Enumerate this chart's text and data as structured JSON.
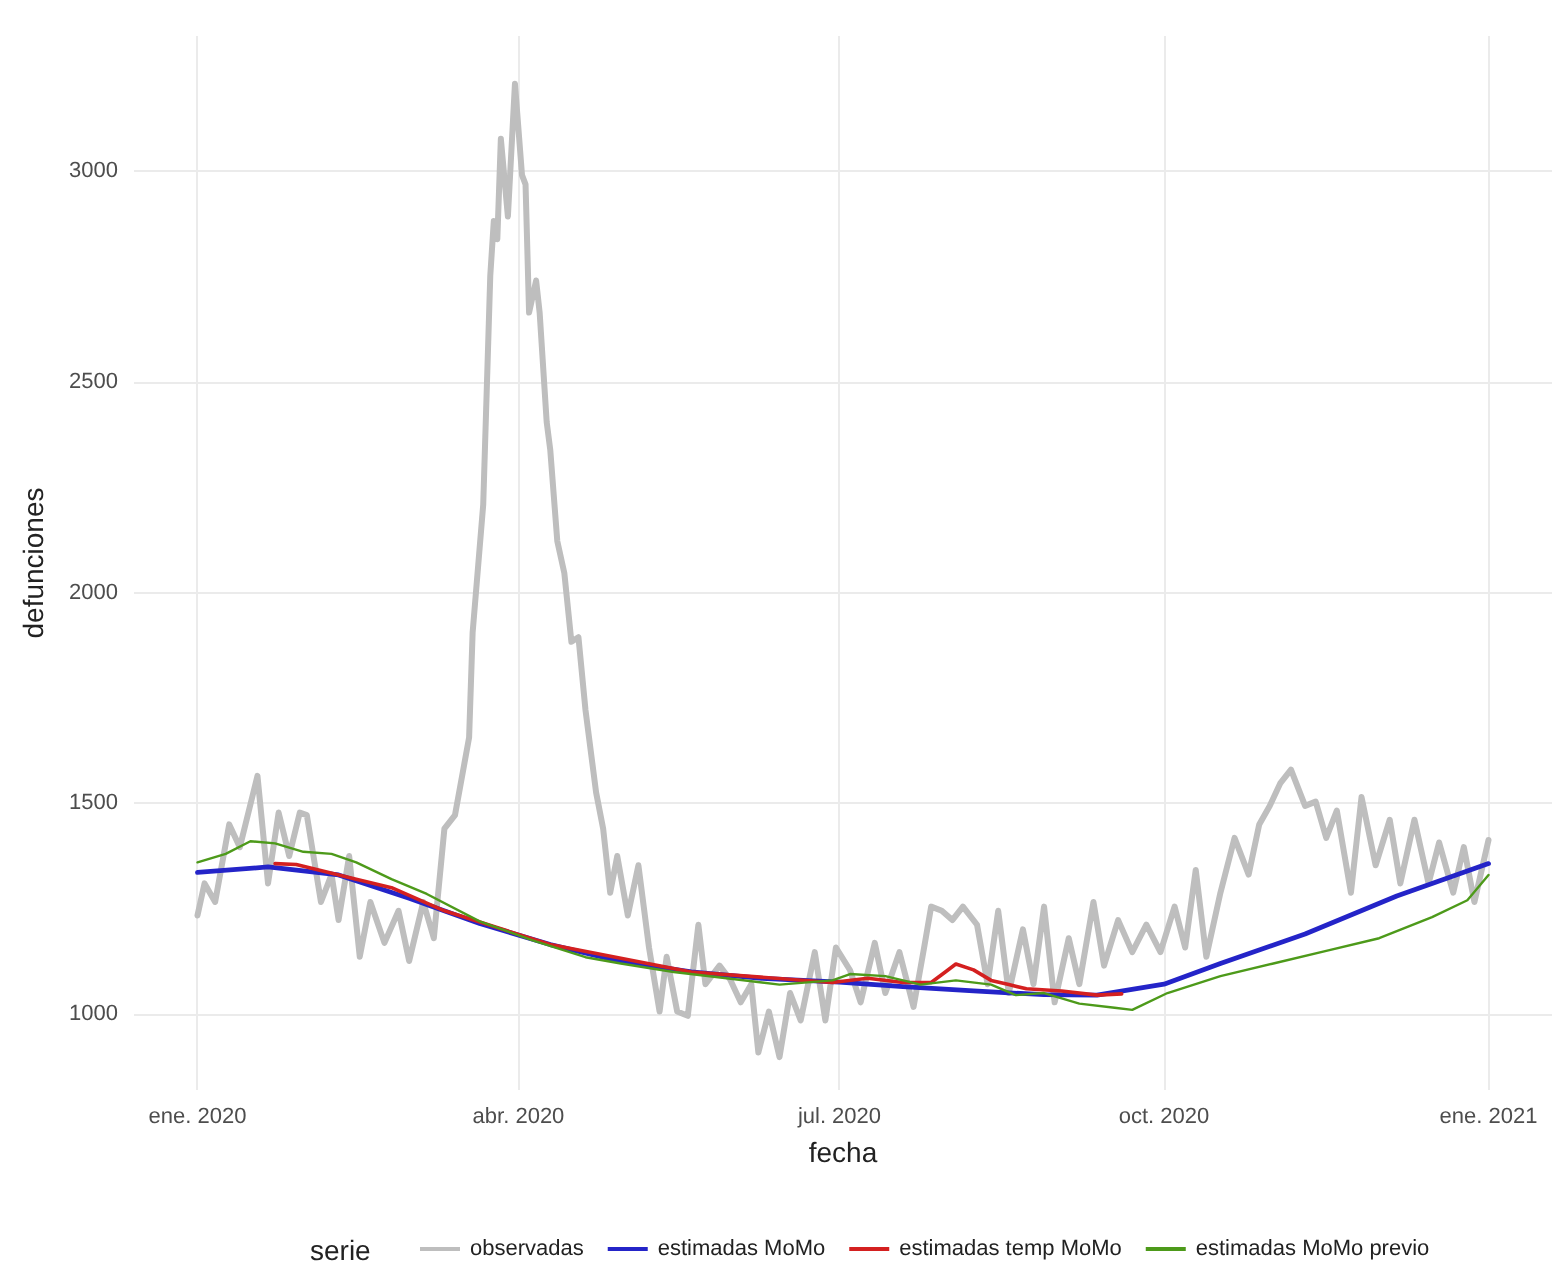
{
  "chart_data": {
    "type": "line",
    "xlabel": "fecha",
    "ylabel": "defunciones",
    "legend_title": "serie",
    "legend": "bottom",
    "grid": true,
    "marker": "none",
    "line_style": "solid",
    "xlim": [
      "2019-12-14",
      "2021-01-19"
    ],
    "xticks": [
      {
        "value": "2020-01-01",
        "label": "ene. 2020"
      },
      {
        "value": "2020-04-01",
        "label": "abr. 2020"
      },
      {
        "value": "2020-07-01",
        "label": "jul. 2020"
      },
      {
        "value": "2020-10-01",
        "label": "oct. 2020"
      },
      {
        "value": "2021-01-01",
        "label": "ene. 2021"
      }
    ],
    "ylim": [
      820,
      3320
    ],
    "yticks": [
      1000,
      1500,
      2000,
      2500,
      3000
    ],
    "series": [
      {
        "name": "observadas",
        "color": "#bebebe",
        "x": [
          "2020-01-01",
          "2020-01-03",
          "2020-01-06",
          "2020-01-10",
          "2020-01-13",
          "2020-01-18",
          "2020-01-21",
          "2020-01-24",
          "2020-01-27",
          "2020-01-30",
          "2020-02-01",
          "2020-02-05",
          "2020-02-08",
          "2020-02-10",
          "2020-02-13",
          "2020-02-16",
          "2020-02-19",
          "2020-02-23",
          "2020-02-27",
          "2020-03-01",
          "2020-03-05",
          "2020-03-08",
          "2020-03-11",
          "2020-03-14",
          "2020-03-18",
          "2020-03-19",
          "2020-03-22",
          "2020-03-24",
          "2020-03-25",
          "2020-03-26",
          "2020-03-27",
          "2020-03-29",
          "2020-03-31",
          "2020-04-02",
          "2020-04-03",
          "2020-04-04",
          "2020-04-06",
          "2020-04-07",
          "2020-04-09",
          "2020-04-10",
          "2020-04-12",
          "2020-04-14",
          "2020-04-16",
          "2020-04-18",
          "2020-04-20",
          "2020-04-23",
          "2020-04-25",
          "2020-04-27",
          "2020-04-29",
          "2020-05-02",
          "2020-05-05",
          "2020-05-08",
          "2020-05-11",
          "2020-05-13",
          "2020-05-16",
          "2020-05-19",
          "2020-05-22",
          "2020-05-24",
          "2020-05-28",
          "2020-05-31",
          "2020-06-03",
          "2020-06-06",
          "2020-06-08",
          "2020-06-11",
          "2020-06-14",
          "2020-06-17",
          "2020-06-20",
          "2020-06-24",
          "2020-06-27",
          "2020-06-30",
          "2020-07-04",
          "2020-07-07",
          "2020-07-11",
          "2020-07-14",
          "2020-07-18",
          "2020-07-22",
          "2020-07-25",
          "2020-07-27",
          "2020-07-30",
          "2020-08-02",
          "2020-08-05",
          "2020-08-09",
          "2020-08-12",
          "2020-08-15",
          "2020-08-18",
          "2020-08-22",
          "2020-08-25",
          "2020-08-28",
          "2020-08-31",
          "2020-09-04",
          "2020-09-07",
          "2020-09-11",
          "2020-09-14",
          "2020-09-18",
          "2020-09-22",
          "2020-09-26",
          "2020-09-30",
          "2020-10-04",
          "2020-10-07",
          "2020-10-10",
          "2020-10-13",
          "2020-10-17",
          "2020-10-21",
          "2020-10-25",
          "2020-10-28",
          "2020-10-31",
          "2020-11-03",
          "2020-11-06",
          "2020-11-10",
          "2020-11-13",
          "2020-11-16",
          "2020-11-19",
          "2020-11-23",
          "2020-11-26",
          "2020-11-30",
          "2020-12-04",
          "2020-12-07",
          "2020-12-11",
          "2020-12-15",
          "2020-12-18",
          "2020-12-22",
          "2020-12-25",
          "2020-12-28",
          "2021-01-01"
        ],
        "values": [
          1234,
          1310,
          1266,
          1450,
          1396,
          1565,
          1310,
          1478,
          1375,
          1478,
          1472,
          1266,
          1331,
          1223,
          1375,
          1136,
          1266,
          1169,
          1245,
          1126,
          1266,
          1180,
          1440,
          1472,
          1656,
          1905,
          2208,
          2751,
          2881,
          2838,
          3076,
          2892,
          3207,
          2990,
          2968,
          2664,
          2740,
          2664,
          2404,
          2339,
          2122,
          2046,
          1883,
          1894,
          1721,
          1526,
          1440,
          1288,
          1375,
          1234,
          1353,
          1158,
          1006,
          1136,
          1006,
          996,
          1212,
          1071,
          1115,
          1082,
          1028,
          1071,
          909,
          1006,
          898,
          1050,
          985,
          1147,
          985,
          1158,
          1104,
          1028,
          1169,
          1050,
          1147,
          1017,
          1158,
          1255,
          1245,
          1223,
          1255,
          1212,
          1071,
          1245,
          1050,
          1201,
          1071,
          1255,
          1028,
          1180,
          1071,
          1266,
          1115,
          1223,
          1147,
          1212,
          1147,
          1255,
          1158,
          1342,
          1136,
          1288,
          1418,
          1331,
          1450,
          1494,
          1548,
          1580,
          1494,
          1504,
          1418,
          1483,
          1288,
          1515,
          1353,
          1461,
          1310,
          1461,
          1310,
          1407,
          1288,
          1396,
          1266,
          1413
        ]
      },
      {
        "name": "estimadas MoMo",
        "color": "#2424c8",
        "x": [
          "2020-01-01",
          "2020-01-21",
          "2020-02-10",
          "2020-03-01",
          "2020-03-21",
          "2020-04-10",
          "2020-04-30",
          "2020-05-20",
          "2020-06-09",
          "2020-07-01",
          "2020-07-19",
          "2020-08-08",
          "2020-08-28",
          "2020-09-12",
          "2020-10-01",
          "2020-10-17",
          "2020-11-10",
          "2020-12-06",
          "2021-01-01"
        ],
        "values": [
          1336,
          1349,
          1330,
          1275,
          1215,
          1165,
          1125,
          1100,
          1085,
          1076,
          1065,
          1055,
          1046,
          1045,
          1071,
          1120,
          1190,
          1280,
          1357
        ]
      },
      {
        "name": "estimadas temp MoMo",
        "color": "#d42020",
        "x": [
          "2020-01-23",
          "2020-01-29",
          "2020-02-15",
          "2020-02-25",
          "2020-03-11",
          "2020-04-10",
          "2020-05-20",
          "2020-06-29",
          "2020-07-09",
          "2020-07-19",
          "2020-07-27",
          "2020-07-31",
          "2020-08-03",
          "2020-08-08",
          "2020-08-13",
          "2020-08-18",
          "2020-08-23",
          "2020-09-02",
          "2020-09-12",
          "2020-09-19"
        ],
        "values": [
          1357,
          1355,
          1320,
          1300,
          1245,
          1165,
          1100,
          1075,
          1085,
          1075,
          1075,
          1100,
          1119,
          1105,
          1080,
          1070,
          1060,
          1055,
          1045,
          1048
        ]
      },
      {
        "name": "estimadas MoMo previo",
        "color": "#4d9a1a",
        "x": [
          "2020-01-01",
          "2020-01-09",
          "2020-01-16",
          "2020-01-23",
          "2020-01-31",
          "2020-02-08",
          "2020-02-15",
          "2020-02-25",
          "2020-03-06",
          "2020-03-21",
          "2020-04-05",
          "2020-04-20",
          "2020-04-30",
          "2020-05-15",
          "2020-05-30",
          "2020-06-14",
          "2020-06-29",
          "2020-07-04",
          "2020-07-14",
          "2020-07-24",
          "2020-08-03",
          "2020-08-13",
          "2020-08-20",
          "2020-08-28",
          "2020-09-07",
          "2020-09-17",
          "2020-09-22",
          "2020-10-02",
          "2020-10-17",
          "2020-11-01",
          "2020-11-16",
          "2020-12-01",
          "2020-12-16",
          "2020-12-26",
          "2021-01-01"
        ],
        "values": [
          1360,
          1380,
          1410,
          1405,
          1385,
          1380,
          1360,
          1320,
          1285,
          1220,
          1175,
          1135,
          1120,
          1100,
          1085,
          1070,
          1080,
          1095,
          1090,
          1070,
          1080,
          1070,
          1045,
          1050,
          1025,
          1015,
          1010,
          1050,
          1090,
          1120,
          1150,
          1180,
          1230,
          1270,
          1330
        ]
      }
    ]
  }
}
